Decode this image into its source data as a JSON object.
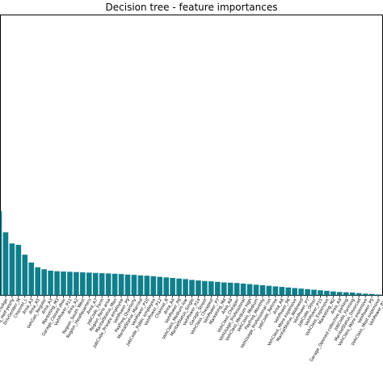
{
  "chart_data": {
    "type": "bar",
    "title": "Decision tree - feature importances",
    "xlabel": "",
    "ylabel": "",
    "grid": false,
    "bar_color": "#0f7f8c",
    "categories": [
      "",
      "DrivAge",
      "PayFreq_Half-yearly",
      "DrivGender_M",
      "Channel_L",
      "Area_A3",
      "Area_A5",
      "VehGas_Regular",
      "Area_A3",
      "Marketing_M3",
      "Garage_Closed zbox",
      "VehPower_P11",
      "Area_A2",
      "Region_South West",
      "Region_Headquarters",
      "Area_A7",
      "JobCode_Farm",
      "Region_Paris area",
      "MaritalStatus_Man",
      "JobCode_Private employee",
      "VehPower_P9",
      "PayFreq_Quarterly",
      "MaritalStatus_Married",
      "VehPower_P10",
      "JobCode_Public employee",
      "VehPower_P12",
      "Channel_B",
      "Area_A4",
      "VehPower_P8",
      "VehClass_Medium low",
      "MaritalStatus_Single",
      "VehPower_P14",
      "Garage_Street",
      "VehClass_Cheapest",
      "VehPower_P7",
      "Marketing_M4",
      "Area_A8",
      "VehClass_Cheaper",
      "VehUsage_Professional",
      "VehClass_Medium high",
      "VehClass_Medium",
      "PayFreq_Monthly",
      "VehUsage_Professional run",
      "JobCode_Retiree",
      "Area_A6",
      "VehPower_P6",
      "VehClass_More expensive",
      "MaritalStatus_Widowed",
      "VehPower_P7",
      "JobCode_Other",
      "VehPower_P15",
      "VehClass_Expensive",
      "Marketing_M2",
      "Area_A9",
      "Garage_Opened collective parking",
      "JobCode_Farming",
      "MaritalStatus_Divorced",
      "VehClass_More expensive",
      "VehPower_P5",
      "VehClass_Most expensive",
      "VehPower_P13"
    ],
    "values": [
      0.3,
      0.225,
      0.185,
      0.18,
      0.145,
      0.117,
      0.1,
      0.093,
      0.088,
      0.086,
      0.085,
      0.084,
      0.083,
      0.082,
      0.081,
      0.08,
      0.079,
      0.078,
      0.077,
      0.076,
      0.074,
      0.073,
      0.071,
      0.07,
      0.068,
      0.066,
      0.064,
      0.062,
      0.06,
      0.058,
      0.055,
      0.053,
      0.051,
      0.05,
      0.048,
      0.046,
      0.045,
      0.044,
      0.042,
      0.04,
      0.038,
      0.036,
      0.034,
      0.032,
      0.03,
      0.028,
      0.026,
      0.024,
      0.022,
      0.02,
      0.018,
      0.016,
      0.014,
      0.012,
      0.011,
      0.01,
      0.008,
      0.006,
      0.005,
      0.003,
      0.002
    ],
    "ylim": [
      0,
      1.0
    ]
  }
}
